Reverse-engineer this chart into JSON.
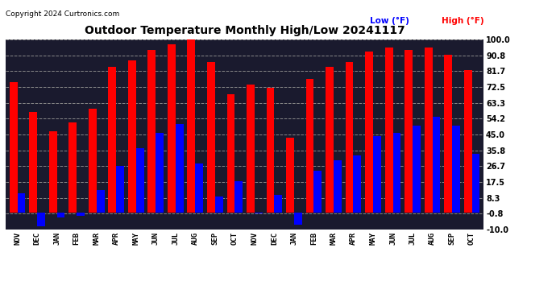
{
  "title": "Outdoor Temperature Monthly High/Low 20241117",
  "copyright": "Copyright 2024 Curtronics.com",
  "legend_low": "Low (°F)",
  "legend_high": "High (°F)",
  "months": [
    "NOV",
    "DEC",
    "JAN",
    "FEB",
    "MAR",
    "APR",
    "MAY",
    "JUN",
    "JUL",
    "AUG",
    "SEP",
    "OCT",
    "NOV",
    "DEC",
    "JAN",
    "FEB",
    "MAR",
    "APR",
    "MAY",
    "JUN",
    "JUL",
    "AUG",
    "SEP",
    "OCT"
  ],
  "high_values": [
    75,
    58,
    47,
    52,
    60,
    84,
    88,
    94,
    97,
    100,
    87,
    68,
    74,
    72,
    43,
    77,
    84,
    87,
    93,
    95,
    94,
    95,
    91,
    82
  ],
  "low_values": [
    11,
    -8,
    -3,
    -2,
    13,
    27,
    37,
    46,
    51,
    28,
    9,
    18,
    -0.5,
    10,
    -7,
    24,
    30,
    33,
    44,
    46,
    50,
    55,
    50,
    34
  ],
  "high_color": "#ff0000",
  "low_color": "#0000ff",
  "background_color": "#ffffff",
  "plot_bg_color": "#1a1a2e",
  "grid_color": "#888888",
  "yticks": [
    100.0,
    90.8,
    81.7,
    72.5,
    63.3,
    54.2,
    45.0,
    35.8,
    26.7,
    17.5,
    8.3,
    -0.8,
    -10.0
  ],
  "ylim": [
    -10.0,
    100.0
  ],
  "bar_width": 0.4
}
